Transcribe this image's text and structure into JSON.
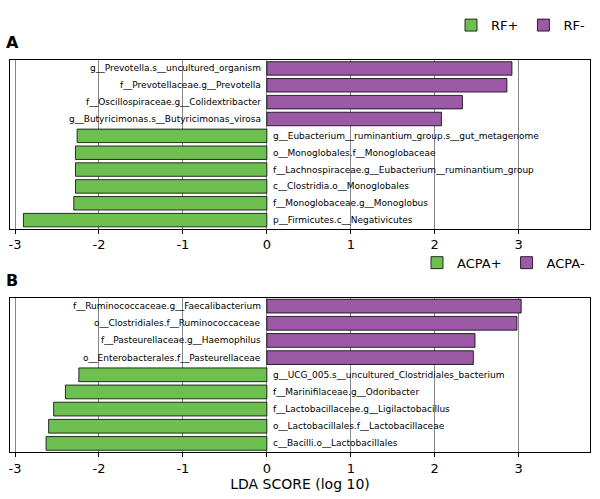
{
  "chart_data": [
    {
      "type": "bar",
      "title": "A",
      "orientation": "horizontal",
      "categories": [
        "g__Prevotella.s__uncultured_organism",
        "f__Prevotellaceae.g__Prevotella",
        "f__Oscillospiraceae.g__Colidextribacter",
        "g__Butyricimonas.s__Butyricimonas_virosa",
        "g__Eubacterium__ruminantium_group.s__gut_metagenome",
        "o__Monoglobales.f__Monoglobaceae",
        "f__Lachnospiraceae.g__Eubacterium__ruminantium_group",
        "c__Clostridia.o__Monoglobales",
        "f__Monoglobaceae.g__Monoglobus",
        "p__Firmicutes.c__Negativicutes"
      ],
      "series": [
        {
          "name": "RF+",
          "color": "#6dbf4f",
          "values": [
            null,
            null,
            null,
            null,
            -2.26,
            -2.28,
            -2.28,
            -2.28,
            -2.3,
            -2.9
          ]
        },
        {
          "name": "RF-",
          "color": "#9b59a6",
          "values": [
            2.92,
            2.86,
            2.33,
            2.08,
            null,
            null,
            null,
            null,
            null,
            null
          ]
        }
      ],
      "xlim": [
        -3.06,
        3.85
      ],
      "xticks": [
        -3,
        -2,
        -1,
        0,
        1,
        2,
        3
      ],
      "grid": true,
      "legend": "upper right",
      "tick_labels": "x"
    },
    {
      "type": "bar",
      "title": "B",
      "orientation": "horizontal",
      "categories": [
        "f__Ruminococcaceae.g__Faecalibacterium",
        "o__Clostridiales.f__Ruminococcaceae",
        "f__Pasteurellaceae.g__Haemophilus",
        "o__Enterobacterales.f__Pasteurellaceae",
        "g__UCG_005.s__uncultured_Clostridiales_bacterium",
        "f__Marinifilaceae.g__Odoribacter",
        "f__Lactobacillaceae.g__Ligilactobacillus",
        "o__Lactobacillales.f__Lactobacillaceae",
        "c__Bacilli.o__Lactobacillales"
      ],
      "series": [
        {
          "name": "ACPA+",
          "color": "#6dbf4f",
          "values": [
            null,
            null,
            null,
            null,
            -2.24,
            -2.4,
            -2.54,
            -2.6,
            -2.63
          ]
        },
        {
          "name": "ACPA-",
          "color": "#9b59a6",
          "values": [
            3.03,
            2.98,
            2.48,
            2.46,
            null,
            null,
            null,
            null,
            null
          ]
        }
      ],
      "xlim": [
        -3.06,
        3.85
      ],
      "xticks": [
        -3,
        -2,
        -1,
        0,
        1,
        2,
        3
      ],
      "xlabel": "LDA SCORE (log 10)",
      "grid": true,
      "legend": "upper right",
      "tick_labels": "x"
    }
  ]
}
